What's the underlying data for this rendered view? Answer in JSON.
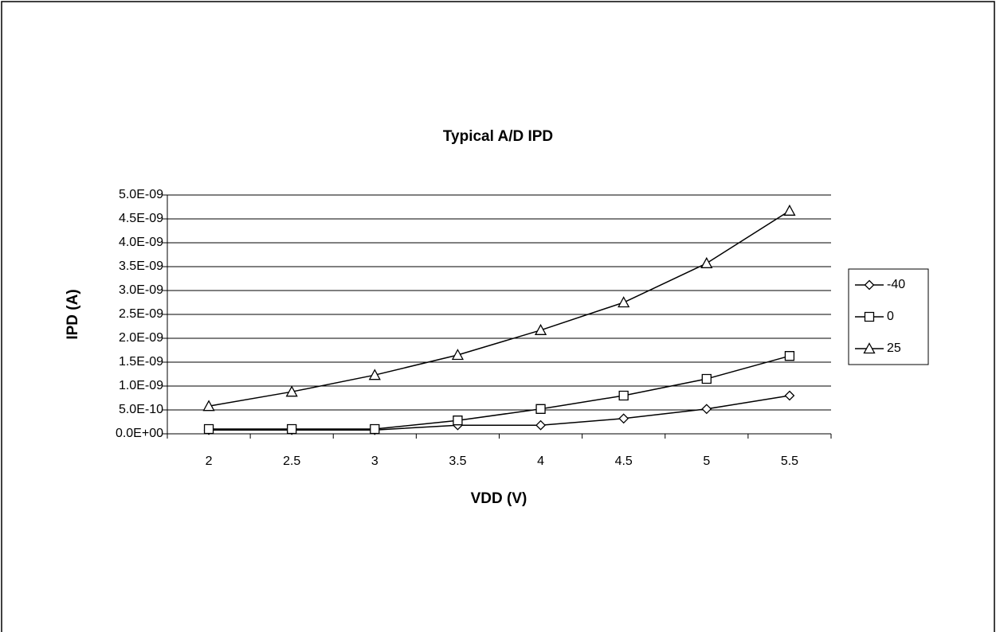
{
  "chart_data": {
    "type": "line",
    "title": "Typical A/D IPD",
    "x_label": "VDD (V)",
    "y_label": "IPD (A)",
    "categories": [
      "2",
      "2.5",
      "3",
      "3.5",
      "4",
      "4.5",
      "5",
      "5.5"
    ],
    "series": [
      {
        "name": "-40",
        "color": "#000000",
        "marker": "diamond",
        "values": [
          8e-11,
          8e-11,
          8e-11,
          1.8e-10,
          1.8e-10,
          3.2e-10,
          5.2e-10,
          8e-10
        ]
      },
      {
        "name": "0",
        "color": "#000000",
        "marker": "square",
        "values": [
          1e-10,
          1e-10,
          1e-10,
          2.8e-10,
          5.2e-10,
          8e-10,
          1.15e-09,
          1.63e-09
        ]
      },
      {
        "name": "25",
        "color": "#000000",
        "marker": "triangle",
        "values": [
          5.8e-10,
          8.8e-10,
          1.23e-09,
          1.65e-09,
          2.17e-09,
          2.75e-09,
          3.57e-09,
          4.67e-09
        ]
      }
    ],
    "ylim": [
      0,
      5e-09
    ],
    "yticks": [
      {
        "value": 0,
        "label": "0.0E+00"
      },
      {
        "value": 5e-10,
        "label": "5.0E-10"
      },
      {
        "value": 1e-09,
        "label": "1.0E-09"
      },
      {
        "value": 1.5e-09,
        "label": "1.5E-09"
      },
      {
        "value": 2e-09,
        "label": "2.0E-09"
      },
      {
        "value": 2.5e-09,
        "label": "2.5E-09"
      },
      {
        "value": 3e-09,
        "label": "3.0E-09"
      },
      {
        "value": 3.5e-09,
        "label": "3.5E-09"
      },
      {
        "value": 4e-09,
        "label": "4.0E-09"
      },
      {
        "value": 4.5e-09,
        "label": "4.5E-09"
      },
      {
        "value": 5e-09,
        "label": "5.0E-09"
      }
    ],
    "grid": true,
    "legend": "right"
  }
}
